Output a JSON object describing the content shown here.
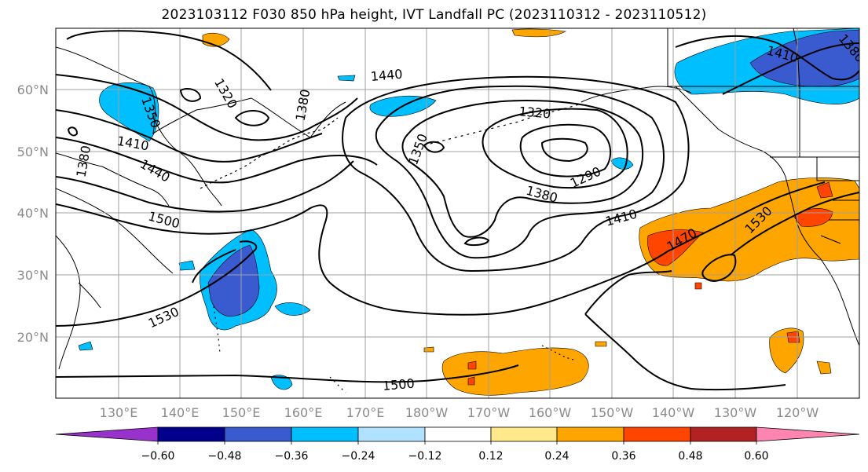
{
  "title": "2023103112 F030 850 hPa height, IVT Landfall PC (2023110312 - 2023110512)",
  "lat_labels": [
    "60°N",
    "50°N",
    "40°N",
    "30°N",
    "20°N"
  ],
  "lon_labels": [
    "130°E",
    "140°E",
    "150°E",
    "160°E",
    "170°E",
    "180°W",
    "170°W",
    "160°W",
    "150°W",
    "140°W",
    "130°W",
    "120°W"
  ],
  "contour_labels": [
    "1320",
    "1350",
    "1380",
    "1410",
    "1440",
    "1500",
    "1530",
    "1290",
    "1320",
    "1350",
    "1380",
    "1410",
    "1440",
    "1470",
    "1530",
    "1500",
    "1380",
    "1410",
    "1380"
  ],
  "colorbar": {
    "tick_labels": [
      "−0.60",
      "−0.48",
      "−0.36",
      "−0.24",
      "−0.12",
      "0.12",
      "0.24",
      "0.36",
      "0.48",
      "0.60"
    ],
    "colors": [
      "#9932cc",
      "#00008b",
      "#3a5bd0",
      "#00bfff",
      "#b0e2ff",
      "#ffffff",
      "#ffe98a",
      "#ffa500",
      "#ff4500",
      "#b22222",
      "#ff85b0"
    ]
  }
}
